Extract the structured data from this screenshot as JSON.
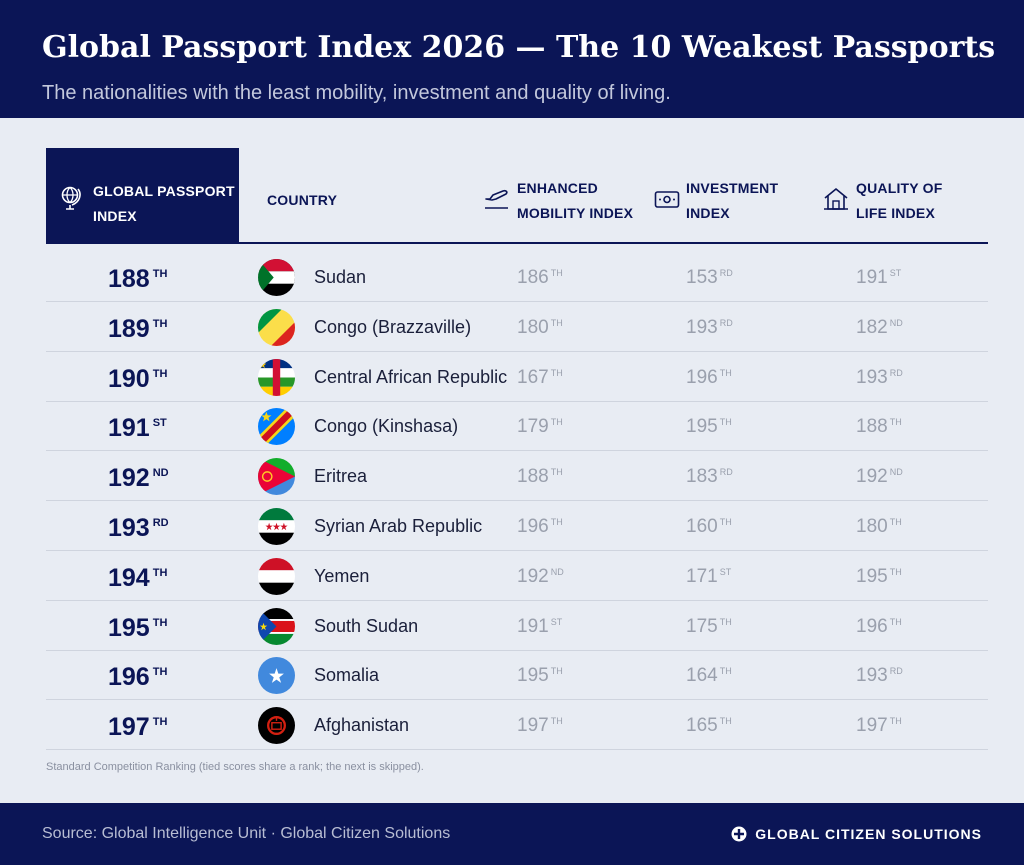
{
  "header": {
    "title": "Global Passport Index 2026 — The 10 Weakest Passports",
    "subtitle": "The nationalities with the least mobility, investment and quality of living."
  },
  "table": {
    "columns": {
      "gpi_line1": "GLOBAL PASSPORT",
      "gpi_line2": "INDEX",
      "country": "COUNTRY",
      "emi_line1": "ENHANCED",
      "emi_line2": "MOBILITY INDEX",
      "inv_line1": "INVESTMENT",
      "inv_line2": "INDEX",
      "qol_line1": "QUALITY OF",
      "qol_line2": "LIFE INDEX"
    },
    "rows": [
      {
        "rank": "188",
        "rank_suffix": "TH",
        "country": "Sudan",
        "flag": "sudan-flag",
        "emi": "186",
        "emi_suffix": "TH",
        "inv": "153",
        "inv_suffix": "RD",
        "qol": "191",
        "qol_suffix": "ST"
      },
      {
        "rank": "189",
        "rank_suffix": "TH",
        "country": "Congo (Brazzaville)",
        "flag": "congo-brazzaville-flag",
        "emi": "180",
        "emi_suffix": "TH",
        "inv": "193",
        "inv_suffix": "RD",
        "qol": "182",
        "qol_suffix": "ND"
      },
      {
        "rank": "190",
        "rank_suffix": "TH",
        "country": "Central African Republic",
        "flag": "central-african-republic-flag",
        "emi": "167",
        "emi_suffix": "TH",
        "inv": "196",
        "inv_suffix": "TH",
        "qol": "193",
        "qol_suffix": "RD"
      },
      {
        "rank": "191",
        "rank_suffix": "ST",
        "country": "Congo (Kinshasa)",
        "flag": "congo-kinshasa-flag",
        "emi": "179",
        "emi_suffix": "TH",
        "inv": "195",
        "inv_suffix": "TH",
        "qol": "188",
        "qol_suffix": "TH"
      },
      {
        "rank": "192",
        "rank_suffix": "ND",
        "country": "Eritrea",
        "flag": "eritrea-flag",
        "emi": "188",
        "emi_suffix": "TH",
        "inv": "183",
        "inv_suffix": "RD",
        "qol": "192",
        "qol_suffix": "ND"
      },
      {
        "rank": "193",
        "rank_suffix": "RD",
        "country": "Syrian Arab Republic",
        "flag": "syria-flag",
        "emi": "196",
        "emi_suffix": "TH",
        "inv": "160",
        "inv_suffix": "TH",
        "qol": "180",
        "qol_suffix": "TH"
      },
      {
        "rank": "194",
        "rank_suffix": "TH",
        "country": "Yemen",
        "flag": "yemen-flag",
        "emi": "192",
        "emi_suffix": "ND",
        "inv": "171",
        "inv_suffix": "ST",
        "qol": "195",
        "qol_suffix": "TH"
      },
      {
        "rank": "195",
        "rank_suffix": "TH",
        "country": "South Sudan",
        "flag": "south-sudan-flag",
        "emi": "191",
        "emi_suffix": "ST",
        "inv": "175",
        "inv_suffix": "TH",
        "qol": "196",
        "qol_suffix": "TH"
      },
      {
        "rank": "196",
        "rank_suffix": "TH",
        "country": "Somalia",
        "flag": "somalia-flag",
        "emi": "195",
        "emi_suffix": "TH",
        "inv": "164",
        "inv_suffix": "TH",
        "qol": "193",
        "qol_suffix": "RD"
      },
      {
        "rank": "197",
        "rank_suffix": "TH",
        "country": "Afghanistan",
        "flag": "afghanistan-flag",
        "emi": "197",
        "emi_suffix": "TH",
        "inv": "165",
        "inv_suffix": "TH",
        "qol": "197",
        "qol_suffix": "TH"
      }
    ]
  },
  "note": "Standard Competition Ranking (tied scores share a rank; the next is skipped).",
  "footer": {
    "source": "Source: Global Intelligence Unit  ·  Global Citizen Solutions",
    "brand": "GLOBAL CITIZEN SOLUTIONS"
  },
  "colors": {
    "navy": "#0b1556",
    "background": "#e8ecf3",
    "muted_value": "#9aa0ad"
  }
}
